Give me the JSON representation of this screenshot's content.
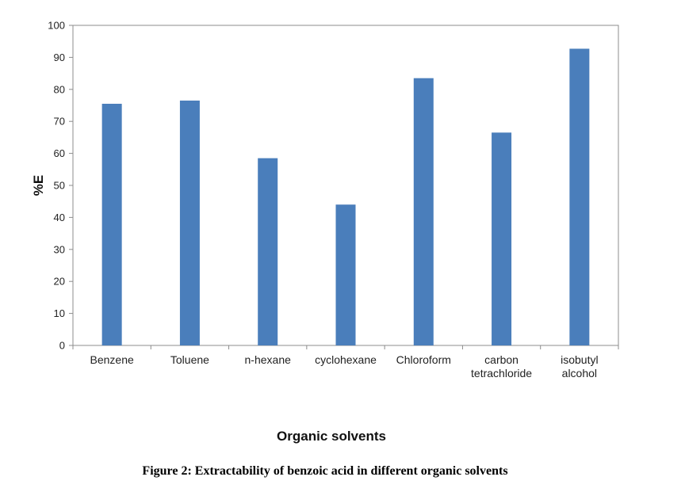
{
  "chart_data": {
    "type": "bar",
    "categories": [
      [
        "Benzene"
      ],
      [
        "Toluene"
      ],
      [
        "n-hexane"
      ],
      [
        "cyclohexane"
      ],
      [
        "Chloroform"
      ],
      [
        "carbon",
        "tetrachloride"
      ],
      [
        "isobutyl",
        "alcohol"
      ]
    ],
    "values": [
      75.5,
      76.5,
      58.5,
      44,
      83.5,
      66.5,
      92.7
    ],
    "ylabel": "%E",
    "xlabel": "Organic solvents",
    "ylim": [
      0,
      100
    ],
    "yticks": [
      0,
      10,
      20,
      30,
      40,
      50,
      60,
      70,
      80,
      90,
      100
    ],
    "bar_color": "#4a7ebb",
    "grid": false,
    "legend": "none"
  },
  "caption": "Figure 2: Extractability of benzoic acid in different organic solvents"
}
